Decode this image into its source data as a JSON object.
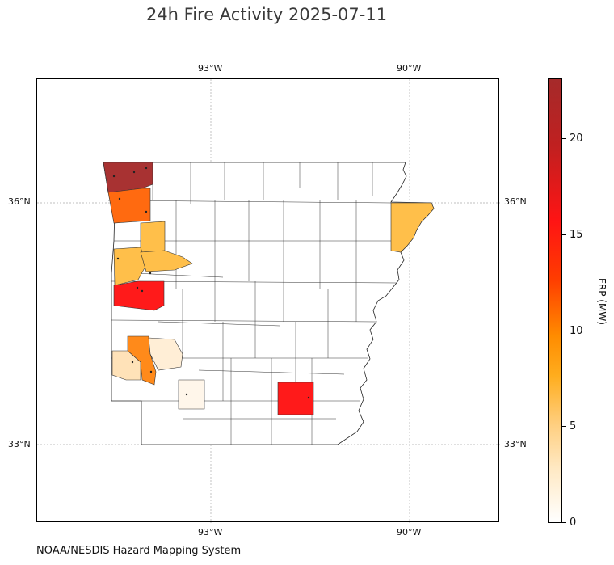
{
  "title": "24h Fire Activity 2025-07-11",
  "credit": "NOAA/NESDIS Hazard Mapping System",
  "axes": {
    "lon_labels": [
      "93°W",
      "90°W"
    ],
    "lat_labels": [
      "36°N",
      "33°N"
    ]
  },
  "colorbar": {
    "label": "FRP (MW)",
    "ticks": [
      "0",
      "5",
      "10",
      "15",
      "20"
    ],
    "range": [
      0,
      23
    ]
  },
  "map": {
    "region": "Arkansas counties",
    "colors": {
      "state_fill": "#ffffff",
      "borders": "#333333",
      "grid": "#aaaaaa"
    },
    "fire_counties": [
      {
        "id": "nw-corner",
        "frp": 23,
        "color": "#a83232"
      },
      {
        "id": "upper-west",
        "frp": 10,
        "color": "#ff6a10"
      },
      {
        "id": "west-center-a",
        "frp": 5,
        "color": "#ffbf4a"
      },
      {
        "id": "west-center-b",
        "frp": 5,
        "color": "#ffbf4a"
      },
      {
        "id": "west-center-c",
        "frp": 5,
        "color": "#ffbf4a"
      },
      {
        "id": "west-red",
        "frp": 17,
        "color": "#ff1a1a"
      },
      {
        "id": "sw-orange",
        "frp": 9,
        "color": "#ff8a1a"
      },
      {
        "id": "sw-light-a",
        "frp": 2,
        "color": "#ffe2b8"
      },
      {
        "id": "sw-light-b",
        "frp": 1,
        "color": "#ffeed6"
      },
      {
        "id": "south-pale",
        "frp": 0.5,
        "color": "#fff6ea"
      },
      {
        "id": "se-red",
        "frp": 17,
        "color": "#ff1a1a"
      },
      {
        "id": "ne-yellow",
        "frp": 5,
        "color": "#ffbf4a"
      }
    ]
  }
}
